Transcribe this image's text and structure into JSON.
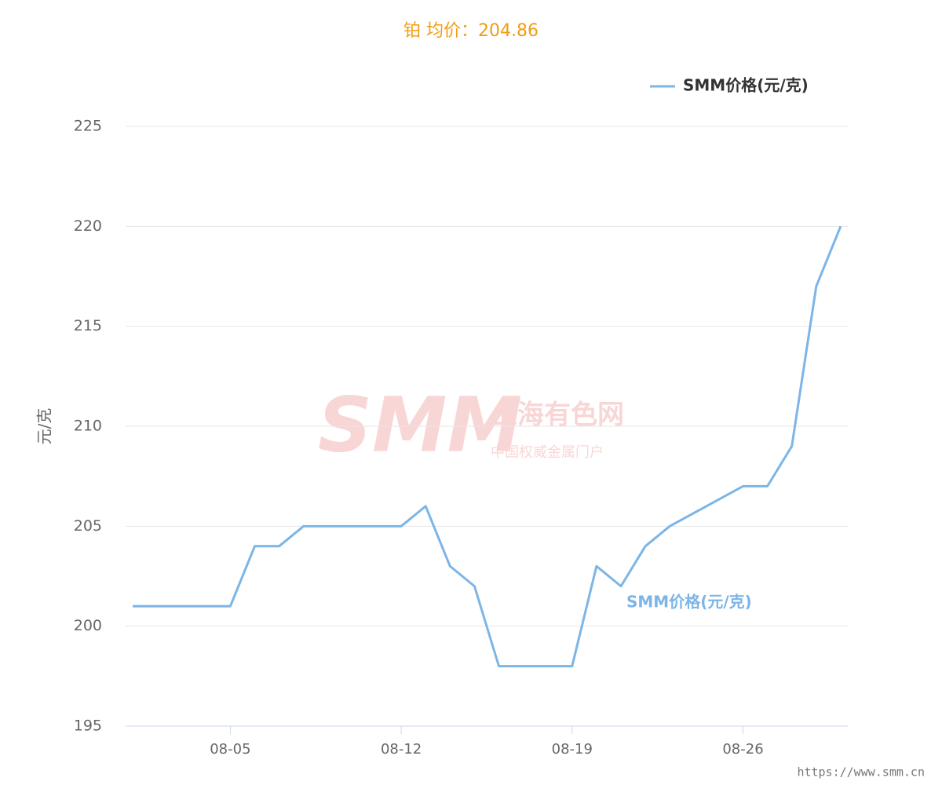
{
  "chart_data": {
    "type": "line",
    "title": "铂 均价：204.86",
    "y_axis_label": "元/克",
    "x": [
      "08-01",
      "08-02",
      "08-05",
      "08-06",
      "08-07",
      "08-08",
      "08-09",
      "08-12",
      "08-13",
      "08-14",
      "08-15",
      "08-16",
      "08-19",
      "08-20",
      "08-21",
      "08-22",
      "08-23",
      "08-26",
      "08-27",
      "08-28",
      "08-29",
      "08-30"
    ],
    "series": [
      {
        "name": "SMM价格(元/克)",
        "color": "#7cb5e6",
        "values": [
          201,
          201,
          201,
          204,
          204,
          205,
          205,
          205,
          206,
          203,
          202,
          198,
          198,
          203,
          202,
          204,
          205,
          207,
          207,
          209,
          217,
          220
        ]
      }
    ],
    "xticks": [
      "08-05",
      "08-12",
      "08-19",
      "08-26"
    ],
    "ylim": [
      195,
      225
    ],
    "yticks": [
      195,
      200,
      205,
      210,
      215,
      220,
      225
    ],
    "grid": true,
    "legend": "top-right",
    "watermark": {
      "logo": "SMM",
      "name": "上海有色网",
      "slogan": "中国权威金属门户",
      "url": "https://www.smm.cn"
    }
  }
}
